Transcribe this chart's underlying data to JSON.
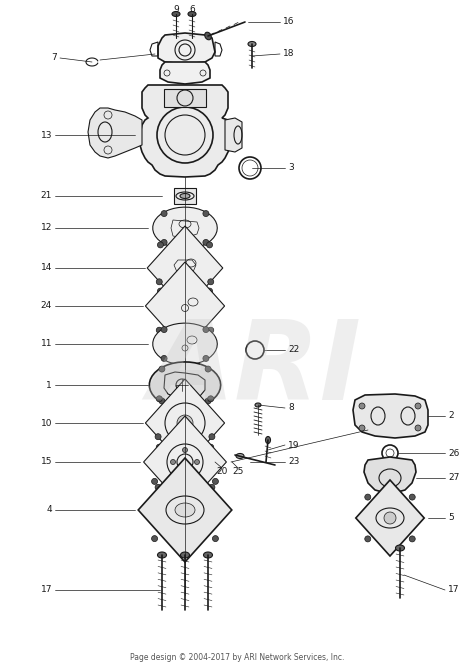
{
  "background_color": "#ffffff",
  "watermark": "ARI",
  "watermark_color": "#c8c8c8",
  "watermark_fontsize": 80,
  "watermark_alpha": 0.3,
  "footer_text": "Page design © 2004-2017 by ARI Network Services, Inc.",
  "footer_fontsize": 5.5,
  "line_color": "#1a1a1a",
  "label_fontsize": 6.5,
  "fig_width": 4.74,
  "fig_height": 6.68,
  "dpi": 100
}
